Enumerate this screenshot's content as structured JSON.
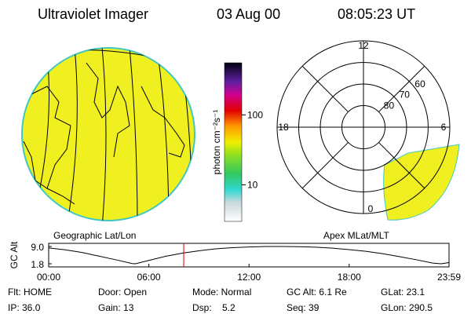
{
  "header": {
    "title": "Ultraviolet Imager",
    "date": "03 Aug 00",
    "time": "08:05:23 UT"
  },
  "colorbar": {
    "label": "photon cm⁻²s⁻¹",
    "ticks": [
      10,
      100
    ],
    "lim": [
      3,
      555
    ],
    "log": true
  },
  "geo": {
    "caption": "Geographic Lat/Lon"
  },
  "polar": {
    "caption": "Apex MLat/MLT",
    "lim": [
      50,
      90
    ],
    "lat_ticks": [
      60,
      70,
      80
    ],
    "mlt_ticks": [
      12,
      18,
      6,
      0
    ]
  },
  "chart_data": {
    "type": "line",
    "ylabel": "GC Alt",
    "color": "#000000",
    "marker_color": "#cc0000",
    "x": [
      0,
      1,
      2,
      3,
      4,
      5,
      5.2,
      6,
      7,
      8,
      9,
      10,
      11,
      12,
      13,
      14,
      15,
      16,
      17,
      18,
      19,
      20,
      21,
      22,
      23,
      23.5,
      23.98
    ],
    "values": [
      8.4,
      7.6,
      6.5,
      5.0,
      3.5,
      1.9,
      1.8,
      3.2,
      4.9,
      6.2,
      7.2,
      8.0,
      8.5,
      8.8,
      9.0,
      9.0,
      8.9,
      8.7,
      8.3,
      7.7,
      7.0,
      6.0,
      4.8,
      3.5,
      2.1,
      1.8,
      2.3
    ],
    "current_time": 8.09,
    "xlim": [
      0,
      23.98
    ],
    "ylim": [
      1.8,
      9.0
    ],
    "yticks": [
      {
        "value": 9,
        "label": "9.0"
      },
      1.8
    ],
    "xticks": [
      {
        "value": 0,
        "label": "00:00"
      },
      {
        "value": 6,
        "label": "06:00"
      },
      {
        "value": 12,
        "label": "12:00"
      },
      {
        "value": 18,
        "label": "18:00"
      },
      {
        "value": 23.98,
        "label": "23:59"
      }
    ]
  },
  "info": {
    "rows": [
      [
        "Flt: HOME",
        "Door: Open",
        "Mode: Normal",
        "GC Alt: 6.1 Re",
        "GLat: 23.1"
      ],
      [
        "IP: 36.0",
        "Gain: 13",
        "Dsp:    5.2",
        "Seq: 39",
        "GLon: 290.5"
      ]
    ]
  }
}
